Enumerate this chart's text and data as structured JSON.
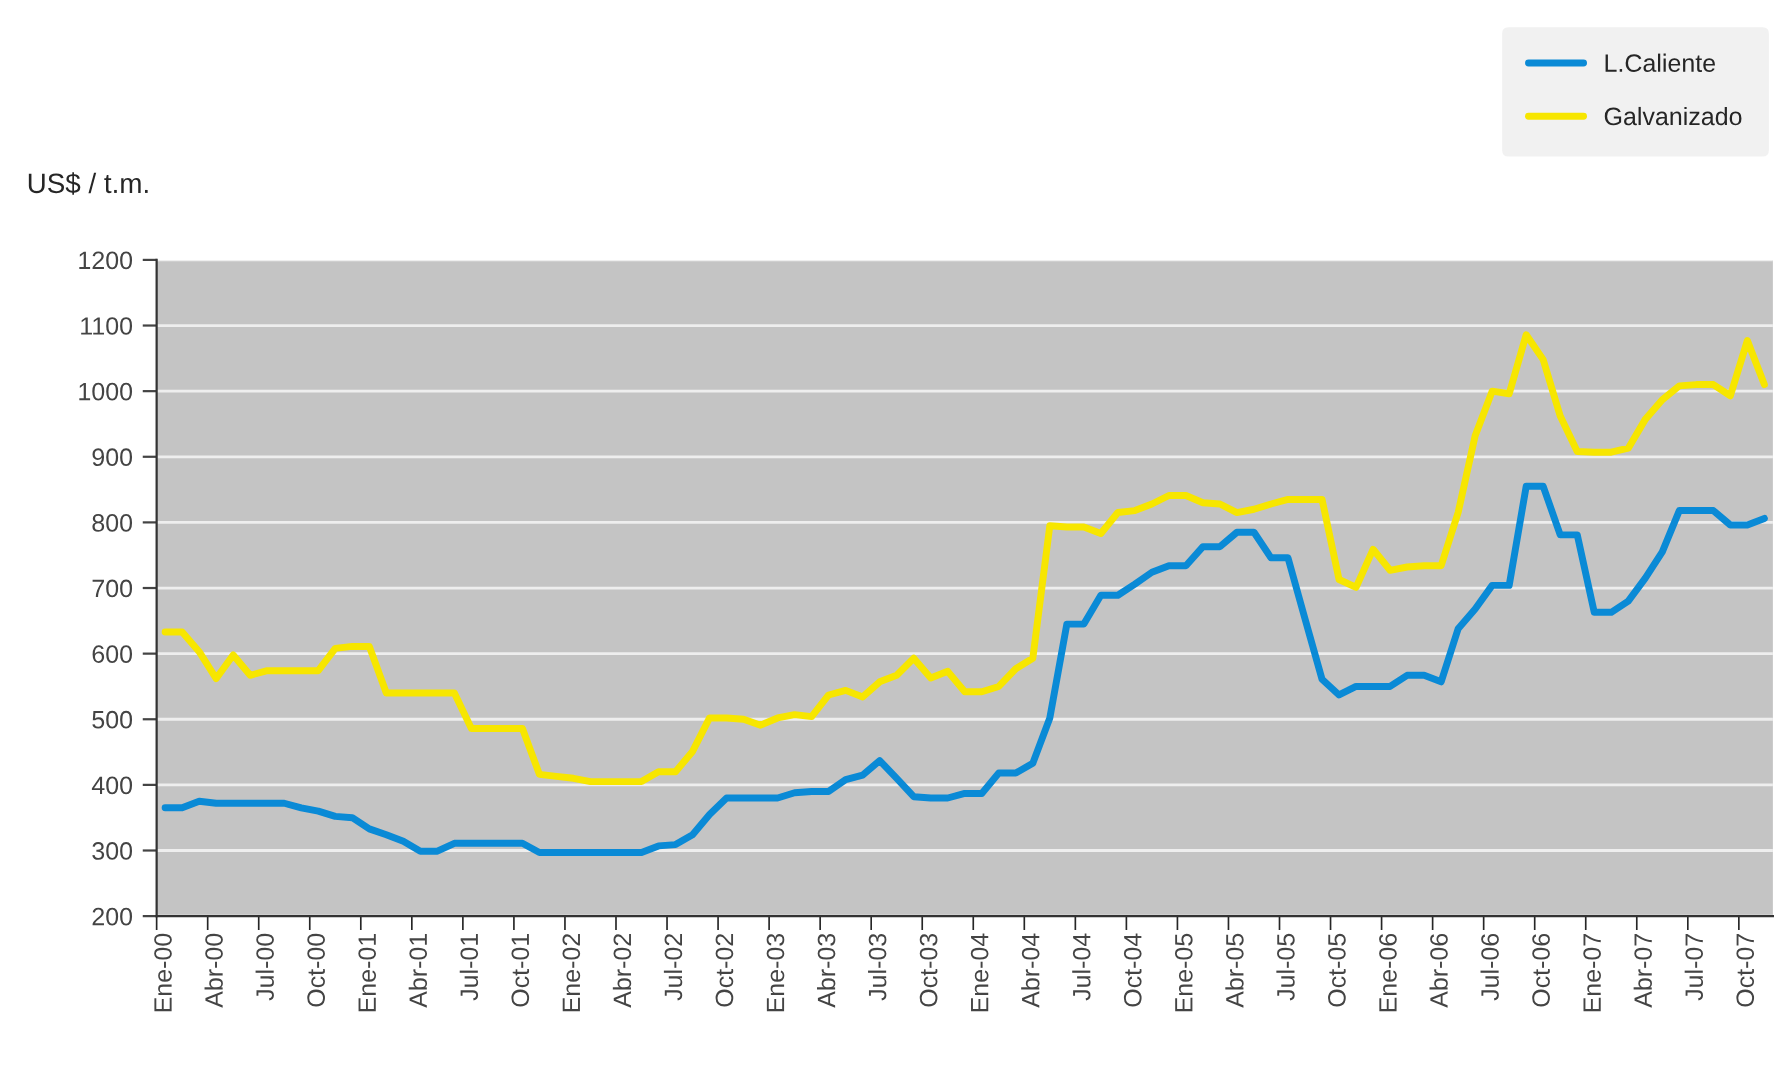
{
  "chart_data": {
    "type": "line",
    "ylabel": "US$ / t.m.",
    "categories": [
      "Ene-00",
      null,
      null,
      "Abr-00",
      null,
      null,
      "Jul-00",
      null,
      null,
      "Oct-00",
      null,
      null,
      "Ene-01",
      null,
      null,
      "Abr-01",
      null,
      null,
      "Jul-01",
      null,
      null,
      "Oct-01",
      null,
      null,
      "Ene-02",
      null,
      null,
      "Abr-02",
      null,
      null,
      "Jul-02",
      null,
      null,
      "Oct-02",
      null,
      null,
      "Ene-03",
      null,
      null,
      "Abr-03",
      null,
      null,
      "Jul-03",
      null,
      null,
      "Oct-03",
      null,
      null,
      "Ene-04",
      null,
      null,
      "Abr-04",
      null,
      null,
      "Jul-04",
      null,
      null,
      "Oct-04",
      null,
      null,
      "Ene-05",
      null,
      null,
      "Abr-05",
      null,
      null,
      "Jul-05",
      null,
      null,
      "Oct-05",
      null,
      null,
      "Ene-06",
      null,
      null,
      "Abr-06",
      null,
      null,
      "Jul-06",
      null,
      null,
      "Oct-06",
      null,
      null,
      "Ene-07",
      null,
      null,
      "Abr-07",
      null,
      null,
      "Jul-07",
      null,
      null,
      "Oct-07",
      null
    ],
    "series": [
      {
        "name": "L.Caliente",
        "color": "#0a8ad6",
        "values": [
          365,
          365,
          375,
          372,
          372,
          372,
          372,
          372,
          365,
          360,
          352,
          350,
          333,
          324,
          314,
          299,
          299,
          311,
          311,
          311,
          311,
          311,
          297,
          297,
          297,
          297,
          297,
          297,
          297,
          307,
          309,
          324,
          355,
          380,
          380,
          380,
          380,
          388,
          390,
          390,
          408,
          415,
          437,
          410,
          382,
          380,
          380,
          387,
          387,
          418,
          418,
          433,
          502,
          645,
          645,
          689,
          689,
          706,
          724,
          734,
          734,
          763,
          763,
          785,
          785,
          746,
          746,
          653,
          561,
          537,
          550,
          550,
          550,
          567,
          567,
          557,
          638,
          668,
          704,
          704,
          855,
          855,
          781,
          781,
          663,
          663,
          680,
          715,
          755,
          818,
          818,
          818,
          796,
          796,
          806
        ]
      },
      {
        "name": "Galvanizado",
        "color": "#f7e600",
        "values": [
          633,
          633,
          603,
          562,
          598,
          567,
          574,
          574,
          574,
          574,
          608,
          611,
          611,
          540,
          540,
          540,
          540,
          540,
          486,
          486,
          486,
          486,
          416,
          413,
          410,
          405,
          405,
          405,
          405,
          420,
          420,
          451,
          502,
          502,
          500,
          491,
          502,
          507,
          504,
          537,
          544,
          534,
          557,
          567,
          593,
          563,
          573,
          542,
          542,
          550,
          577,
          593,
          795,
          793,
          793,
          783,
          815,
          818,
          828,
          841,
          841,
          830,
          828,
          815,
          820,
          828,
          835,
          835,
          835,
          713,
          701,
          759,
          727,
          732,
          734,
          734,
          815,
          932,
          1000,
          996,
          1086,
          1048,
          962,
          908,
          907,
          907,
          913,
          957,
          987,
          1008,
          1010,
          1010,
          993,
          1077,
          1010
        ]
      }
    ],
    "ylim": [
      200,
      1200
    ],
    "yticks": [
      200,
      300,
      400,
      500,
      600,
      700,
      800,
      900,
      1000,
      1100,
      1200
    ],
    "grid": "y",
    "legend": "top right",
    "marker": "none",
    "line_style": "solid"
  }
}
